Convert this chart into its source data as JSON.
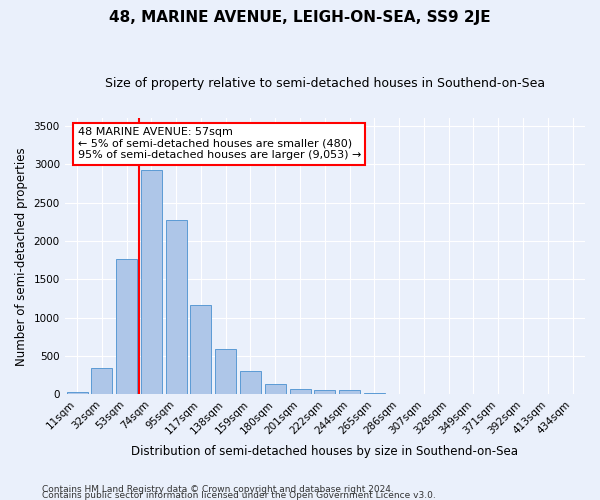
{
  "title": "48, MARINE AVENUE, LEIGH-ON-SEA, SS9 2JE",
  "subtitle": "Size of property relative to semi-detached houses in Southend-on-Sea",
  "xlabel": "Distribution of semi-detached houses by size in Southend-on-Sea",
  "ylabel": "Number of semi-detached properties",
  "categories": [
    "11sqm",
    "32sqm",
    "53sqm",
    "74sqm",
    "95sqm",
    "117sqm",
    "138sqm",
    "159sqm",
    "180sqm",
    "201sqm",
    "222sqm",
    "244sqm",
    "265sqm",
    "286sqm",
    "307sqm",
    "328sqm",
    "349sqm",
    "371sqm",
    "392sqm",
    "413sqm",
    "434sqm"
  ],
  "values": [
    30,
    340,
    1760,
    2920,
    2270,
    1160,
    590,
    300,
    130,
    75,
    60,
    55,
    20,
    0,
    0,
    0,
    0,
    0,
    0,
    0,
    0
  ],
  "bar_color": "#aec6e8",
  "bar_edge_color": "#5b9bd5",
  "vline_color": "red",
  "vline_x_index": 2.5,
  "annotation_text": "48 MARINE AVENUE: 57sqm\n← 5% of semi-detached houses are smaller (480)\n95% of semi-detached houses are larger (9,053) →",
  "annotation_box_color": "white",
  "annotation_box_edge_color": "red",
  "ylim": [
    0,
    3600
  ],
  "yticks": [
    0,
    500,
    1000,
    1500,
    2000,
    2500,
    3000,
    3500
  ],
  "footnote1": "Contains HM Land Registry data © Crown copyright and database right 2024.",
  "footnote2": "Contains public sector information licensed under the Open Government Licence v3.0.",
  "bg_color": "#eaf0fb",
  "plot_bg_color": "#eaf0fb",
  "title_fontsize": 11,
  "subtitle_fontsize": 9,
  "tick_fontsize": 7.5,
  "ylabel_fontsize": 8.5,
  "xlabel_fontsize": 8.5,
  "annotation_fontsize": 8,
  "footnote_fontsize": 6.5
}
